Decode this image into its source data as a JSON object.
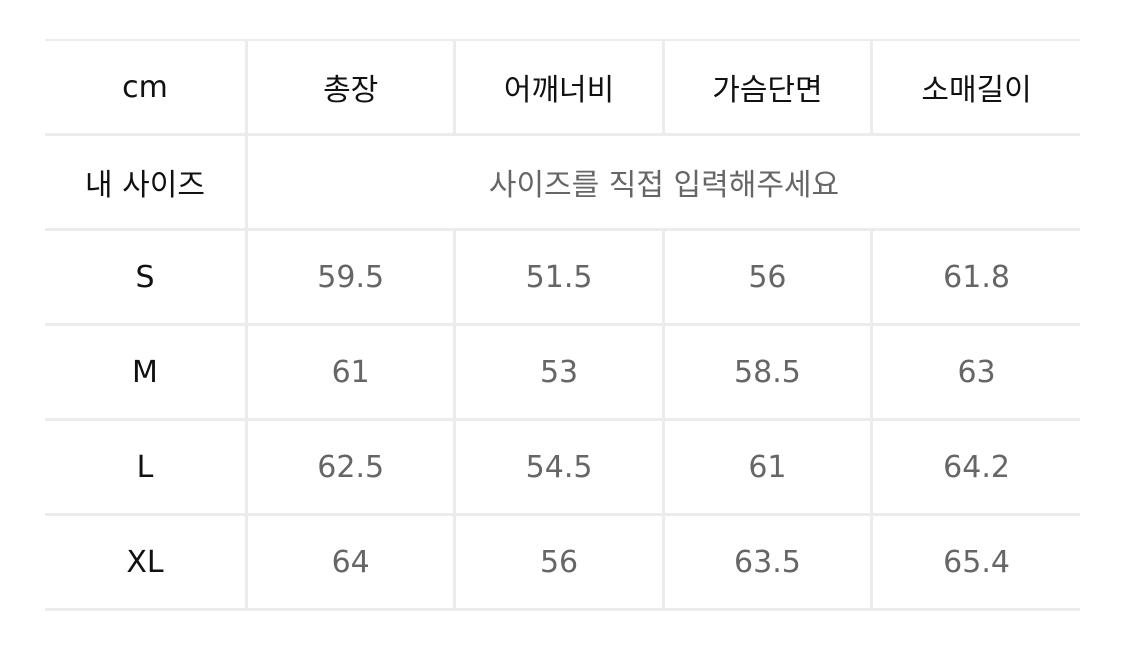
{
  "header": [
    "cm",
    "총장",
    "어깨너비",
    "가슴단면",
    "소매길이"
  ],
  "my_size": {
    "label": "내 사이즈",
    "prompt": "사이즈를 직접 입력해주세요"
  },
  "rows": [
    {
      "size": "S",
      "values": [
        "59.5",
        "51.5",
        "56",
        "61.8"
      ]
    },
    {
      "size": "M",
      "values": [
        "61",
        "53",
        "58.5",
        "63"
      ]
    },
    {
      "size": "L",
      "values": [
        "62.5",
        "54.5",
        "61",
        "64.2"
      ]
    },
    {
      "size": "XL",
      "values": [
        "64",
        "56",
        "63.5",
        "65.4"
      ]
    }
  ]
}
